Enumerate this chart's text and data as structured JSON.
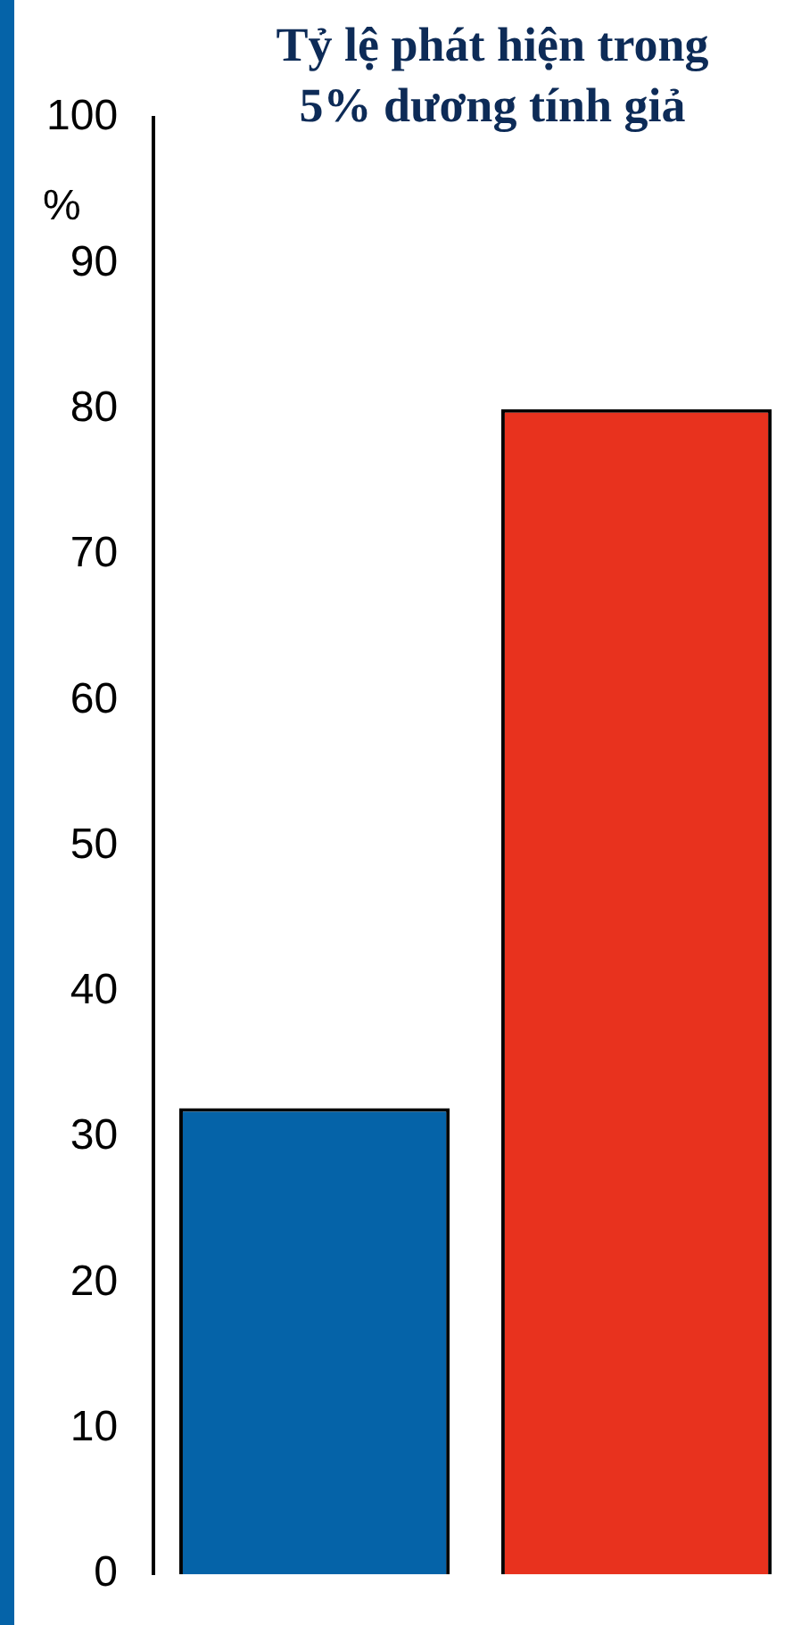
{
  "chart_data": {
    "type": "bar",
    "title": "Tỷ lệ phát hiện trong\n5% dương tính giả",
    "ylabel": "%",
    "categories": [
      null,
      null
    ],
    "values": [
      32,
      80
    ],
    "colors": [
      "#0563a8",
      "#e8321e"
    ],
    "ylim": [
      0,
      100
    ],
    "yticks": [
      0,
      10,
      20,
      30,
      40,
      50,
      60,
      70,
      80,
      90,
      100
    ],
    "grid": false,
    "legend": false
  }
}
